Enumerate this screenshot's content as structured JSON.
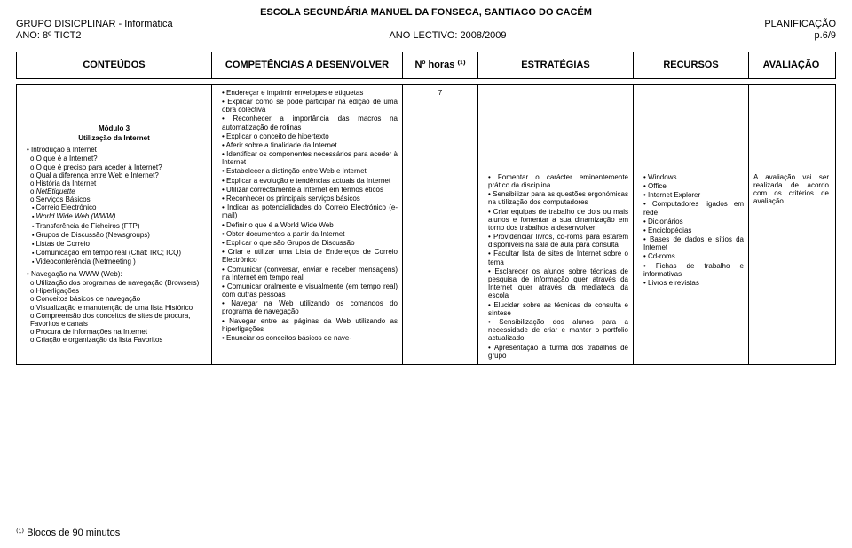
{
  "header": {
    "school": "ESCOLA SECUNDÁRIA MANUEL DA FONSECA, SANTIAGO DO CACÉM",
    "group": "GRUPO DISICPLINAR - Informática",
    "plan": "PLANIFICAÇÃO",
    "year_label": "ANO: 8º TICT2",
    "ano_lectivo": "ANO LECTIVO: 2008/2009",
    "page": "p.6/9"
  },
  "columns": {
    "conteudos": "CONTEÚDOS",
    "competencias": "COMPETÊNCIAS A DESENVOLVER",
    "horas": "Nº horas ⁽¹⁾",
    "estrategias": "ESTRATÉGIAS",
    "recursos": "RECURSOS",
    "avaliacao": "AVALIAÇÃO"
  },
  "module": {
    "title": "Módulo 3",
    "subtitle": "Utilização da Internet"
  },
  "conteudos": {
    "intro": "Introdução à Internet",
    "intro_items": [
      "O que é a Internet?",
      "O que é preciso para aceder à Internet?",
      "Qual a diferença entre Web e Internet?",
      "História da Internet",
      "NetEtiquette",
      "Serviços Básicos"
    ],
    "servicos": [
      "Correio Electrónico",
      "World Wide Web (WWW)",
      "Transferência de Ficheiros (FTP)",
      "Grupos de Discussão (Newsgroups)",
      "Listas de Correio",
      "Comunicação em tempo real (Chat: IRC; ICQ)",
      "Videoconferência (Netmeeting )"
    ],
    "nav": "Navegação na WWW (Web):",
    "nav_items": [
      "Utilização dos programas de navegação (Browsers)",
      "Hiperligações",
      "Conceitos básicos de navegação",
      "Visualização e manutenção de uma lista Histórico",
      "Compreensão dos conceitos de sites de procura, Favoritos e canais",
      "Procura de informações na Internet",
      "Criação e organização da lista Favoritos"
    ]
  },
  "competencias": [
    "Endereçar e imprimir envelopes e etiquetas",
    "Explicar como se pode participar na edição de uma obra colectiva",
    "Reconhecer a importância das macros na automatização de rotinas",
    "Explicar o conceito de hipertexto",
    "Aferir sobre a finalidade da Internet",
    "Identificar os componentes necessários para aceder à Internet",
    "Estabelecer a distinção entre Web e Internet",
    "Explicar a evolução e tendências actuais da Internet",
    "Utilizar correctamente a Internet em termos éticos",
    "Reconhecer os principais serviços básicos",
    "Indicar as potencialidades do Correio Electrónico (e-mail)",
    "Definir o que é a World Wide Web",
    "Obter documentos a partir da Internet",
    "Explicar o que são Grupos de Discussão",
    "Criar e utilizar uma Lista de Endereços de Correio Electrónico",
    "Comunicar (conversar, enviar e receber mensagens) na Internet em tempo real",
    "Comunicar oralmente e visualmente (em tempo real) com outras pessoas",
    "Navegar na Web utilizando os comandos do programa de navegação",
    "Navegar entre as páginas da Web utilizando as hiperligações",
    "Enunciar os conceitos básicos de nave-"
  ],
  "horas_value": "7",
  "estrategias": [
    "Fomentar o carácter eminentemente prático da disciplina",
    "Sensibilizar para as questões ergonómicas na utilização dos computadores",
    "Criar equipas de trabalho de dois ou mais alunos e fomentar a sua dinamização em torno dos trabalhos a desenvolver",
    "Providenciar livros, cd-roms para estarem disponíveis na sala de aula para consulta",
    "Facultar lista de sites de Internet sobre o tema",
    "Esclarecer os alunos sobre técnicas de pesquisa de informação quer através da Internet quer através da mediateca da escola",
    "Elucidar sobre as técnicas de consulta e síntese",
    "Sensibilização dos alunos para a necessidade de criar e manter o portfolio actualizado",
    "Apresentação à turma dos trabalhos de grupo"
  ],
  "recursos": [
    "Windows",
    "Office",
    "Internet Explorer",
    "Computadores ligados em rede",
    "Dicionários",
    "Enciclopédias",
    "Bases de dados e sítios da Internet",
    "Cd-roms",
    "Fichas de trabalho e informativas",
    "Livros e revistas"
  ],
  "avaliacao_text": "A avaliação vai ser realizada de acordo com os critérios de avaliação",
  "footer": "⁽¹⁾ Blocos de 90 minutos"
}
